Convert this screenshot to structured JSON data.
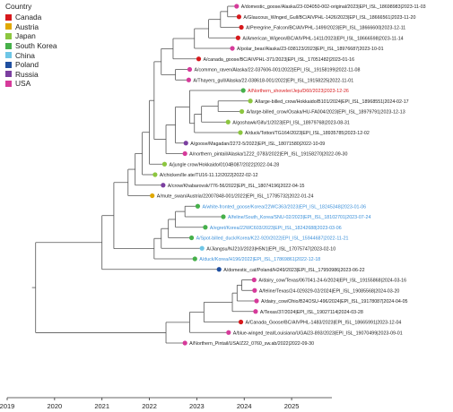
{
  "legend": {
    "title": "Country",
    "items": [
      {
        "label": "Canada",
        "color": "#d7191c"
      },
      {
        "label": "Austria",
        "color": "#e0a800"
      },
      {
        "label": "Japan",
        "color": "#8cc63f"
      },
      {
        "label": "South Korea",
        "color": "#46b04a"
      },
      {
        "label": "China",
        "color": "#6ec6e6"
      },
      {
        "label": "Poland",
        "color": "#1f4fa0"
      },
      {
        "label": "Russia",
        "color": "#7b3fa0"
      },
      {
        "label": "USA",
        "color": "#d63a9a"
      }
    ]
  },
  "colors": {
    "default_label": "#222222",
    "highlight_red": "#d7191c",
    "highlight_blue": "#3a8fd9",
    "branch": "#555555"
  },
  "axis": {
    "min": 2019,
    "max": 2025.85,
    "ticks": [
      2019,
      2020,
      2021,
      2022,
      2023,
      2024,
      2025
    ]
  },
  "tips": [
    {
      "label": "A/domestic_goose/Alaska/23-034050-002-original/2023|EPI_ISL_18698983|2023-11-03",
      "country": "USA",
      "date": 2023.84,
      "style": "default"
    },
    {
      "label": "A/Glaucous_Winged_Gull/BC/AIVPHL-1426/2023|EPI_ISL_18666561|2023-11-20",
      "country": "Canada",
      "date": 2023.89,
      "style": "default"
    },
    {
      "label": "A/Peregrine_Falcon/BC/AIVPHL-1499/2023|EPI_ISL_18666600|2023-12-11",
      "country": "Canada",
      "date": 2023.94,
      "style": "default"
    },
    {
      "label": "A/American_Wigeon/BC/AIVPHL-1411/2023|EPI_ISL_18666598|2023-11-14",
      "country": "Canada",
      "date": 2023.87,
      "style": "default"
    },
    {
      "label": "A/polar_bear/Alaska/23-038123/2023|EPI_ISL_18976687|2023-10-01",
      "country": "USA",
      "date": 2023.75,
      "style": "default"
    },
    {
      "label": "A/canada_goose/BC/AIVPHL-371/2023|EPI_ISL_17051482|2023-01-16",
      "country": "Canada",
      "date": 2023.04,
      "style": "default"
    },
    {
      "label": "A/common_raven/Alaska/22-037606-001/2022|EPI_ISL_19158199|2022-11-08",
      "country": "USA",
      "date": 2022.85,
      "style": "default"
    },
    {
      "label": "A/Thayers_gull/Alaska/22-038618-001/2022|EPI_ISL_19158225|2022-11-01",
      "country": "USA",
      "date": 2022.83,
      "style": "default"
    },
    {
      "label": "A/Northern_shoveler/Jeju/D60/2023|2023-12-26",
      "country": "South Korea",
      "date": 2023.98,
      "style": "red"
    },
    {
      "label": "A/large-billed_crow/Hokkaido/B101/2024|EPI_ISL_18968551|2024-02-17",
      "country": "Japan",
      "date": 2024.13,
      "style": "default"
    },
    {
      "label": "A/large-billed_crow/Osaka/HU-FA004/2023|EPI_ISL_18979791|2023-12-13",
      "country": "Japan",
      "date": 2023.95,
      "style": "default"
    },
    {
      "label": "A/goshawk/Gifu/1/2023|EPI_ISL_18979768|2023-08-31",
      "country": "Japan",
      "date": 2023.66,
      "style": "default"
    },
    {
      "label": "A/duck/Tottori/TG164/2023|EPI_ISL_18935785|2023-12-02",
      "country": "Japan",
      "date": 2023.92,
      "style": "default"
    },
    {
      "label": "A/goose/Magadan/2272-5/2022|EPI_ISL_18071580|2022-10-09",
      "country": "Russia",
      "date": 2022.77,
      "style": "default"
    },
    {
      "label": "A/northern_pintail/Alaska/1Z22_0783/2022|EPI_ISL_19158270|2022-09-30",
      "country": "USA",
      "date": 2022.75,
      "style": "default"
    },
    {
      "label": "A/jungle crow/Hokkaido/0104B087/2022|2022-04-28",
      "country": "Japan",
      "date": 2022.32,
      "style": "default"
    },
    {
      "label": "A/chicken/Ile ate/TU16-11.12/2022|2022-02-12",
      "country": "Japan",
      "date": 2022.12,
      "style": "default"
    },
    {
      "label": "A/crow/Khabarovsk/776-56/2022|EPI_ISL_18074196|2022-04-15",
      "country": "Russia",
      "date": 2022.29,
      "style": "default"
    },
    {
      "label": "A/mute_swan/Austria/22007848-001/2022|EPI_ISL_17785732|2022-01-24",
      "country": "Austria",
      "date": 2022.06,
      "style": "default"
    },
    {
      "label": "A/white-fronted_goose/Korea/22WC363/2023|EPI_ISL_18245348|2023-01-06",
      "country": "South Korea",
      "date": 2023.02,
      "style": "blue"
    },
    {
      "label": "A/feline/South_Korea/SNU-02/2023|EPI_ISL_18102701|2023-07-24",
      "country": "South Korea",
      "date": 2023.56,
      "style": "blue"
    },
    {
      "label": "A/egret/Korea/22WC603/2023|EPI_ISL_18242688|2023-03-06",
      "country": "South Korea",
      "date": 2023.18,
      "style": "blue"
    },
    {
      "label": "A/Spot-billed_duck/Korea/K22-920/2022|EPI_ISL_15944687|2022-11-21",
      "country": "South Korea",
      "date": 2022.89,
      "style": "blue"
    },
    {
      "label": "A/Jiangsu/NJ210/2023|H5N1|EPI_ISL_17075747|2023-02-10",
      "country": "China",
      "date": 2023.11,
      "style": "default"
    },
    {
      "label": "A/duck/Korea/H196/2022|EPI_ISL_17869861|2022-12-18",
      "country": "South Korea",
      "date": 2022.96,
      "style": "blue"
    },
    {
      "label": "A/domestic_cat/Poland/H249/2023|EPI_ISL_17950986|2023-06-22",
      "country": "Poland",
      "date": 2023.47,
      "style": "default"
    },
    {
      "label": "A/dairy_cow/Texas/067041-24-6/2024|EPI_ISL_19155868|2024-03-16",
      "country": "USA",
      "date": 2024.21,
      "style": "default"
    },
    {
      "label": "A/feline/Texas/24-029329-02/2024|EPI_ISL_19085568|2024-03-20",
      "country": "USA",
      "date": 2024.22,
      "style": "default"
    },
    {
      "label": "A/dairy_cow/Ohio/B24OSU-496/2024|EPI_ISL_19178087|2024-04-05",
      "country": "USA",
      "date": 2024.26,
      "style": "default"
    },
    {
      "label": "A/Texas/37/2024|EPI_ISL_19027114|2024-03-28",
      "country": "USA",
      "date": 2024.24,
      "style": "default"
    },
    {
      "label": "A/Canada_Goose/BC/AIVPHL-1483/2023|EPI_ISL_18665991|2023-12-04",
      "country": "Canada",
      "date": 2023.93,
      "style": "default"
    },
    {
      "label": "A/blue-winged_teal/Louisiana/UGAi23-893/2023|EPI_ISL_19070499|2023-09-01",
      "country": "USA",
      "date": 2023.67,
      "style": "default"
    },
    {
      "label": "A/Northern_Pintail/USA/Z22_0760_sw.ab/2022|2022-09-30",
      "country": "USA",
      "date": 2022.75,
      "style": "default"
    }
  ],
  "nodes": [
    {
      "id": "a",
      "date": 2023.65,
      "children": [
        0,
        1
      ]
    },
    {
      "id": "b",
      "date": 2023.5,
      "children": [
        "a",
        2
      ]
    },
    {
      "id": "c",
      "date": 2023.25,
      "children": [
        "b",
        3
      ]
    },
    {
      "id": "d",
      "date": 2022.95,
      "children": [
        "c",
        4
      ]
    },
    {
      "id": "e",
      "date": 2022.5,
      "children": [
        "d",
        5
      ]
    },
    {
      "id": "f",
      "date": 2022.55,
      "children": [
        6,
        7
      ]
    },
    {
      "id": "g",
      "date": 2022.25,
      "children": [
        "e",
        "f"
      ]
    },
    {
      "id": "h",
      "date": 2023.45,
      "children": [
        9,
        10
      ]
    },
    {
      "id": "i",
      "date": 2023.1,
      "children": [
        "h",
        11
      ]
    },
    {
      "id": "j",
      "date": 2022.95,
      "children": [
        "i",
        12
      ]
    },
    {
      "id": "k",
      "date": 2022.85,
      "children": [
        8,
        "j"
      ]
    },
    {
      "id": "l",
      "date": 2022.55,
      "children": [
        "k",
        13
      ]
    },
    {
      "id": "m",
      "date": 2022.35,
      "children": [
        "l",
        14
      ]
    },
    {
      "id": "n",
      "date": 2022.1,
      "children": [
        "g",
        "m"
      ]
    },
    {
      "id": "o",
      "date": 2022.0,
      "children": [
        "n",
        15
      ]
    },
    {
      "id": "p",
      "date": 2021.85,
      "children": [
        "o",
        16
      ]
    },
    {
      "id": "q",
      "date": 2021.7,
      "children": [
        "p",
        17
      ]
    },
    {
      "id": "r",
      "date": 2021.55,
      "children": [
        "q",
        18
      ]
    },
    {
      "id": "s",
      "date": 2022.75,
      "children": [
        19,
        20
      ]
    },
    {
      "id": "t",
      "date": 2022.55,
      "children": [
        "s",
        21
      ]
    },
    {
      "id": "u",
      "date": 2022.4,
      "children": [
        "t",
        22
      ]
    },
    {
      "id": "v",
      "date": 2022.25,
      "children": [
        "u",
        23
      ]
    },
    {
      "id": "w",
      "date": 2022.1,
      "children": [
        "v",
        24
      ]
    },
    {
      "id": "x",
      "date": 2021.25,
      "children": [
        "r",
        "w"
      ]
    },
    {
      "id": "y",
      "date": 2021.0,
      "children": [
        "x",
        25
      ]
    },
    {
      "id": "z",
      "date": 2023.95,
      "children": [
        26,
        27
      ]
    },
    {
      "id": "aa",
      "date": 2023.85,
      "children": [
        "z",
        28
      ]
    },
    {
      "id": "ab",
      "date": 2023.75,
      "children": [
        "aa",
        29
      ]
    },
    {
      "id": "ac",
      "date": 2023.15,
      "children": [
        "ab",
        30
      ]
    },
    {
      "id": "ad",
      "date": 2022.85,
      "children": [
        "ac",
        31
      ]
    },
    {
      "id": "ae",
      "date": 2022.35,
      "children": [
        "ad",
        32
      ]
    },
    {
      "id": "root",
      "date": 2019.6,
      "children": [
        "y",
        "ae"
      ]
    }
  ]
}
